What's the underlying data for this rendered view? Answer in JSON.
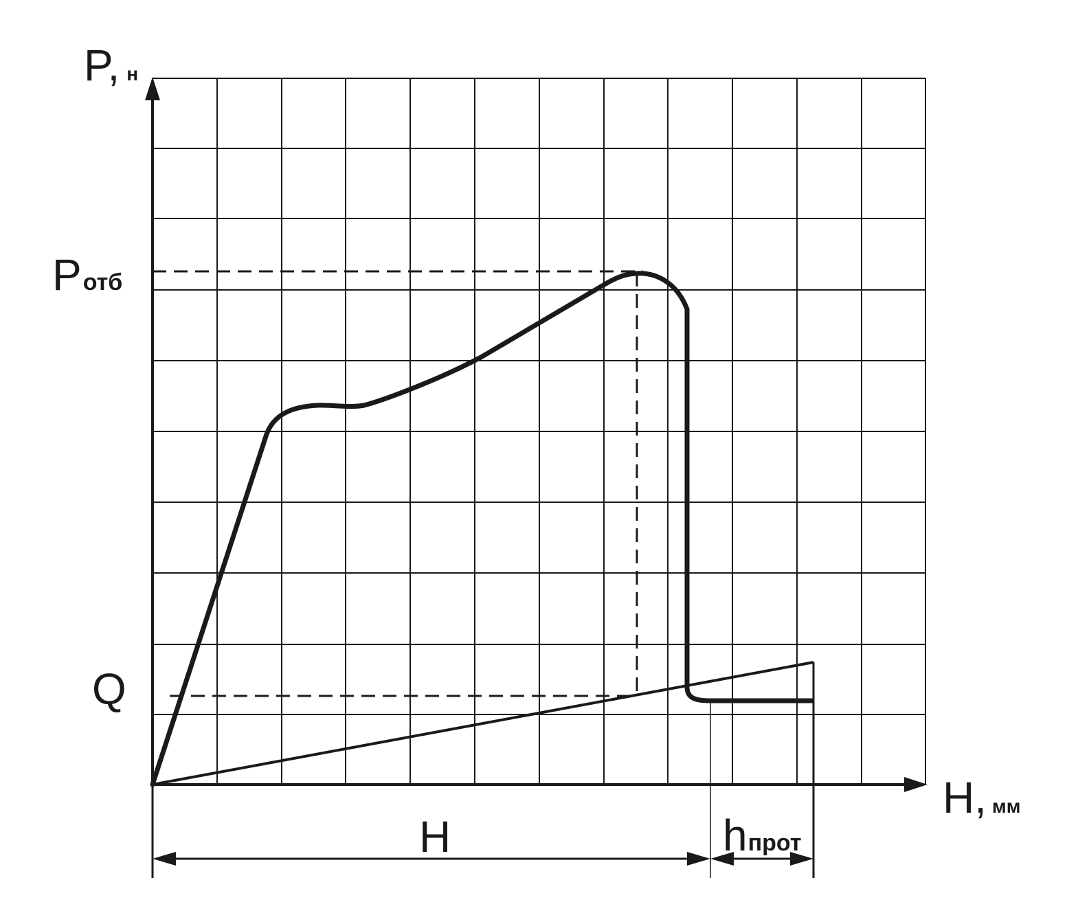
{
  "chart_data": {
    "type": "line",
    "grid": true,
    "y_axis": {
      "label_main": "P,",
      "label_unit": "н"
    },
    "x_axis": {
      "label_main": "H,",
      "label_unit": "мм"
    },
    "y_marks": [
      {
        "main": "P",
        "sub": "отб"
      },
      {
        "main": "Q",
        "sub": ""
      }
    ],
    "dimensions": [
      {
        "main": "H",
        "sub": ""
      },
      {
        "main": "h",
        "sub": "прот"
      }
    ],
    "colors": {
      "line": "#1a1a1a",
      "grid": "#1a1a1a",
      "background": "#ffffff"
    }
  }
}
